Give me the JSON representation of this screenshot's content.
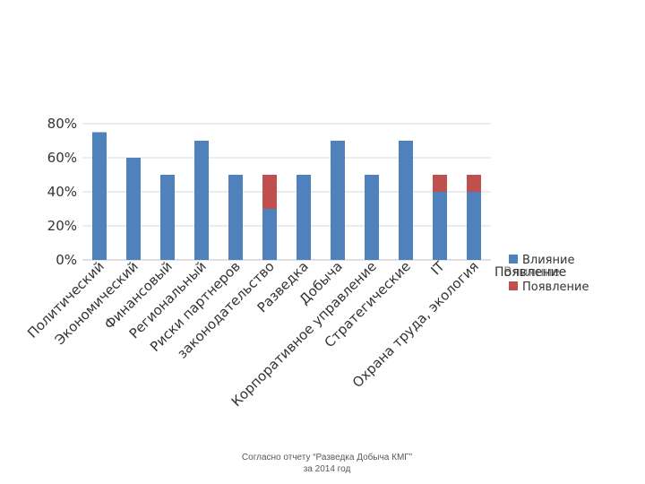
{
  "chart_data": {
    "type": "bar",
    "stacked": true,
    "categories": [
      "Политический",
      "Экономический",
      "Финансовый",
      "Региональный",
      "Риски партнеров",
      "законодательство",
      "Разведка",
      "Добыча",
      "Корпоративное управление",
      "Стратегические",
      "IT",
      "Охрана труда, экология"
    ],
    "series": [
      {
        "name": "Влияние",
        "color": "#4f81bd",
        "values": [
          75,
          60,
          50,
          70,
          50,
          30,
          50,
          70,
          50,
          70,
          40,
          40
        ]
      },
      {
        "name": "Появление",
        "color": "#c0504d",
        "values": [
          0,
          0,
          0,
          0,
          0,
          20,
          0,
          0,
          0,
          0,
          10,
          10
        ]
      }
    ],
    "y_ticks": [
      "0%",
      "20%",
      "40%",
      "60%",
      "80%"
    ],
    "ylim": [
      0,
      80
    ],
    "grid": true,
    "legend_position": "right",
    "legend_overlap_label": "Появление"
  },
  "footnote": {
    "line1": "Согласно отчету “Разведка Добыча КМГ”",
    "line2": "за 2014 год"
  }
}
